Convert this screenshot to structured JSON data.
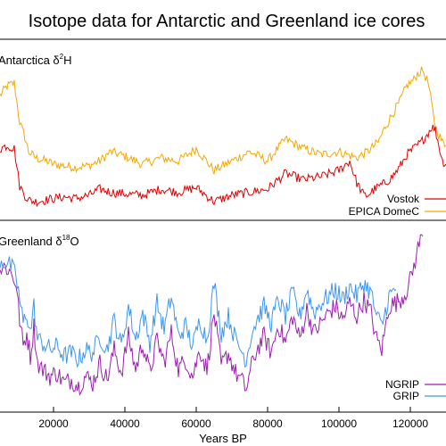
{
  "title": "Isotope data for Antarctic and Greenland ice cores",
  "colors": {
    "vostok": "#e00000",
    "epica": "#f5a800",
    "ngrip": "#9b1faf",
    "grip": "#3f96f0",
    "axis": "#000000"
  },
  "chart_data": [
    {
      "type": "line",
      "panel": "antarctica",
      "label_main": "Antarctica δ",
      "label_sup": "2",
      "label_tail": "H",
      "x_range": [
        5000,
        130000
      ],
      "y_range": [
        0,
        1
      ],
      "series": [
        {
          "name": "EPICA DomeC",
          "color_key": "epica",
          "x": [
            5000,
            7000,
            9000,
            10500,
            12000,
            13000,
            15000,
            18000,
            20000,
            23000,
            26000,
            30000,
            33000,
            36000,
            40000,
            45000,
            50000,
            55000,
            60000,
            65000,
            70000,
            75000,
            80000,
            85000,
            90000,
            95000,
            100000,
            105000,
            108000,
            111000,
            113000,
            115000,
            117000,
            119000,
            121000,
            122000,
            123500,
            125000,
            127000,
            129000,
            130000
          ],
          "y": [
            0.72,
            0.78,
            0.8,
            0.55,
            0.45,
            0.36,
            0.32,
            0.3,
            0.28,
            0.27,
            0.26,
            0.27,
            0.3,
            0.36,
            0.33,
            0.28,
            0.32,
            0.3,
            0.38,
            0.24,
            0.3,
            0.36,
            0.3,
            0.44,
            0.38,
            0.34,
            0.36,
            0.32,
            0.36,
            0.42,
            0.52,
            0.6,
            0.68,
            0.78,
            0.82,
            0.86,
            0.88,
            0.8,
            0.52,
            0.42,
            0.4
          ]
        },
        {
          "name": "Vostok",
          "color_key": "vostok",
          "x": [
            5000,
            7000,
            9000,
            10500,
            12000,
            13000,
            15000,
            18000,
            20000,
            23000,
            26000,
            30000,
            33000,
            36000,
            40000,
            45000,
            50000,
            55000,
            60000,
            65000,
            70000,
            75000,
            80000,
            85000,
            90000,
            95000,
            100000,
            103000,
            105000,
            107000,
            108000,
            110000,
            113000,
            115000,
            117000,
            119000,
            121000,
            123000,
            125000,
            126000,
            127000,
            129000,
            130000
          ],
          "y": [
            0.38,
            0.4,
            0.38,
            0.14,
            0.08,
            0.05,
            0.04,
            0.05,
            0.06,
            0.07,
            0.06,
            0.08,
            0.12,
            0.1,
            0.09,
            0.08,
            0.12,
            0.1,
            0.13,
            0.04,
            0.08,
            0.1,
            0.12,
            0.22,
            0.18,
            0.2,
            0.24,
            0.3,
            0.16,
            0.08,
            0.08,
            0.12,
            0.16,
            0.2,
            0.26,
            0.34,
            0.38,
            0.42,
            0.48,
            0.52,
            0.5,
            0.3,
            0.28
          ]
        }
      ]
    },
    {
      "type": "line",
      "panel": "greenland",
      "label_main": "Greenland δ",
      "label_sup": "18",
      "label_tail": "O",
      "xlabel": "Years BP",
      "x_ticks": [
        "20000",
        "40000",
        "60000",
        "80000",
        "100000",
        "120000"
      ],
      "x_tick_values": [
        20000,
        40000,
        60000,
        80000,
        100000,
        120000
      ],
      "x_range": [
        5000,
        130000
      ],
      "y_range": [
        0,
        1
      ],
      "series": [
        {
          "name": "NGRIP",
          "color_key": "ngrip",
          "x": [
            5000,
            6500,
            8000,
            9500,
            10500,
            11500,
            12500,
            13500,
            14500,
            15500,
            17000,
            19000,
            21000,
            23000,
            25000,
            27000,
            29000,
            31000,
            33000,
            35000,
            37000,
            39000,
            41000,
            43000,
            45000,
            47000,
            49000,
            51000,
            53000,
            55000,
            57000,
            59000,
            61000,
            63000,
            65000,
            67000,
            69000,
            71000,
            72500,
            74000,
            75500,
            77000,
            79000,
            81000,
            83000,
            85000,
            87000,
            89000,
            91000,
            93000,
            95000,
            97000,
            99000,
            101000,
            103000,
            105000,
            107000,
            109000,
            110500,
            112000,
            114000,
            116000,
            118000,
            119500,
            121000,
            122500,
            123500
          ],
          "y": [
            0.78,
            0.8,
            0.76,
            0.7,
            0.48,
            0.32,
            0.4,
            0.26,
            0.44,
            0.22,
            0.18,
            0.14,
            0.16,
            0.1,
            0.12,
            0.08,
            0.14,
            0.1,
            0.22,
            0.12,
            0.3,
            0.16,
            0.38,
            0.18,
            0.34,
            0.16,
            0.36,
            0.22,
            0.4,
            0.18,
            0.24,
            0.14,
            0.3,
            0.18,
            0.52,
            0.2,
            0.28,
            0.16,
            0.12,
            0.06,
            0.2,
            0.3,
            0.38,
            0.28,
            0.45,
            0.34,
            0.5,
            0.36,
            0.54,
            0.4,
            0.46,
            0.52,
            0.56,
            0.48,
            0.58,
            0.5,
            0.6,
            0.52,
            0.36,
            0.3,
            0.56,
            0.58,
            0.62,
            0.68,
            0.8,
            0.94,
            0.98
          ]
        },
        {
          "name": "GRIP",
          "color_key": "grip",
          "x": [
            5000,
            6500,
            8000,
            9500,
            10500,
            11500,
            12500,
            13500,
            14500,
            15500,
            17000,
            19000,
            21000,
            23000,
            25000,
            27000,
            29000,
            31000,
            33000,
            35000,
            37000,
            39000,
            41000,
            43000,
            45000,
            47000,
            49000,
            51000,
            53000,
            55000,
            57000,
            59000,
            61000,
            63000,
            65000,
            67000,
            69000,
            71000,
            72500,
            74000,
            75500,
            77000,
            79000,
            81000,
            83000,
            85000,
            87000,
            89000,
            91000,
            93000,
            95000,
            97000,
            99000,
            101000,
            103000,
            105000,
            107000,
            109000,
            110500,
            112000,
            114000,
            116000
          ],
          "y": [
            0.84,
            0.82,
            0.8,
            0.74,
            0.6,
            0.46,
            0.52,
            0.4,
            0.56,
            0.36,
            0.34,
            0.3,
            0.32,
            0.26,
            0.28,
            0.24,
            0.3,
            0.28,
            0.38,
            0.3,
            0.48,
            0.32,
            0.56,
            0.36,
            0.52,
            0.34,
            0.58,
            0.42,
            0.62,
            0.38,
            0.44,
            0.32,
            0.48,
            0.36,
            0.7,
            0.4,
            0.5,
            0.36,
            0.3,
            0.24,
            0.4,
            0.48,
            0.56,
            0.46,
            0.6,
            0.5,
            0.64,
            0.5,
            0.66,
            0.52,
            0.58,
            0.62,
            0.66,
            0.6,
            0.68,
            0.62,
            0.7,
            0.64,
            0.5,
            0.44,
            0.62,
            0.66
          ]
        }
      ]
    }
  ]
}
